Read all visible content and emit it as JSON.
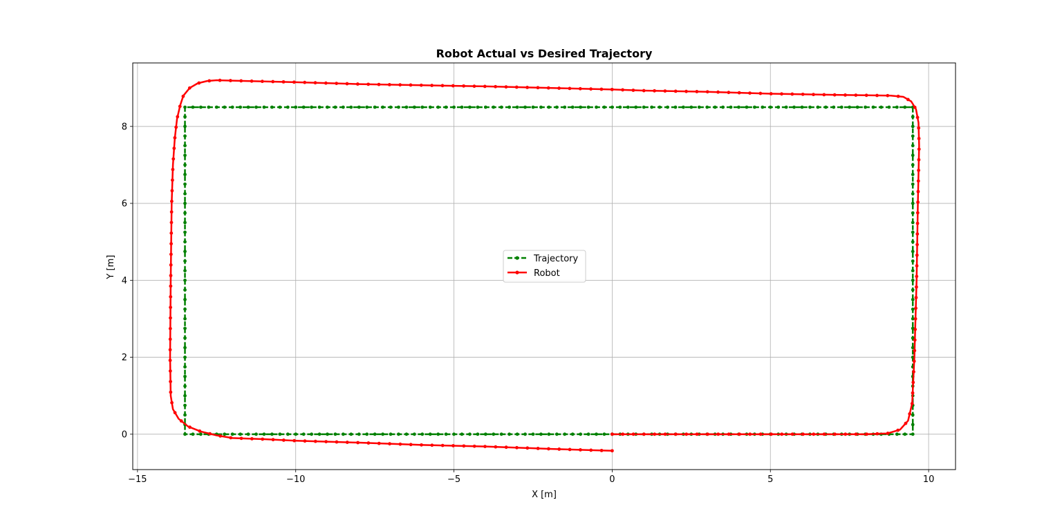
{
  "chart_data": {
    "type": "line",
    "title": "Robot Actual vs Desired Trajectory",
    "xlabel": "X [m]",
    "ylabel": "Y [m]",
    "xlim": [
      -15.15,
      10.85
    ],
    "ylim": [
      -0.92,
      9.65
    ],
    "xticks": [
      -15,
      -10,
      -5,
      0,
      5,
      10
    ],
    "yticks": [
      0,
      2,
      4,
      6,
      8
    ],
    "xtick_labels": [
      "−15",
      "−10",
      "−5",
      "0",
      "5",
      "10"
    ],
    "ytick_labels": [
      "0",
      "2",
      "4",
      "6",
      "8"
    ],
    "grid": true,
    "legend_position": "center",
    "series": [
      {
        "name": "Trajectory",
        "color": "#008000",
        "style": "dashed",
        "marker": "dot",
        "corners": [
          [
            0,
            0
          ],
          [
            9.5,
            0
          ],
          [
            9.5,
            8.5
          ],
          [
            -13.5,
            8.5
          ],
          [
            -13.5,
            0
          ],
          [
            0,
            0
          ]
        ],
        "segment_points": [
          38,
          34,
          92,
          34,
          54
        ]
      },
      {
        "name": "Robot",
        "color": "#ff0000",
        "style": "solid",
        "marker": "dot",
        "points": [
          [
            0,
            0
          ],
          [
            1,
            0
          ],
          [
            2,
            0
          ],
          [
            3,
            0
          ],
          [
            4,
            0
          ],
          [
            5,
            0
          ],
          [
            6,
            0
          ],
          [
            7,
            0
          ],
          [
            8,
            0
          ],
          [
            8.7,
            0.02
          ],
          [
            9.1,
            0.12
          ],
          [
            9.35,
            0.35
          ],
          [
            9.48,
            0.8
          ],
          [
            9.55,
            2
          ],
          [
            9.62,
            4
          ],
          [
            9.66,
            6
          ],
          [
            9.7,
            7.5
          ],
          [
            9.68,
            8.1
          ],
          [
            9.6,
            8.45
          ],
          [
            9.45,
            8.65
          ],
          [
            9.2,
            8.77
          ],
          [
            8.8,
            8.8
          ],
          [
            7,
            8.82
          ],
          [
            5,
            8.85
          ],
          [
            3,
            8.9
          ],
          [
            1,
            8.93
          ],
          [
            0,
            8.96
          ],
          [
            -2,
            9.0
          ],
          [
            -4,
            9.04
          ],
          [
            -6,
            9.07
          ],
          [
            -8,
            9.1
          ],
          [
            -10,
            9.15
          ],
          [
            -11,
            9.17
          ],
          [
            -12,
            9.19
          ],
          [
            -12.5,
            9.2
          ],
          [
            -12.8,
            9.18
          ],
          [
            -13.1,
            9.12
          ],
          [
            -13.35,
            9.0
          ],
          [
            -13.55,
            8.8
          ],
          [
            -13.65,
            8.55
          ],
          [
            -13.75,
            8.2
          ],
          [
            -13.82,
            7.7
          ],
          [
            -13.88,
            7.0
          ],
          [
            -13.92,
            6.0
          ],
          [
            -13.95,
            4.0
          ],
          [
            -13.97,
            2.0
          ],
          [
            -13.95,
            1.0
          ],
          [
            -13.88,
            0.65
          ],
          [
            -13.7,
            0.4
          ],
          [
            -13.4,
            0.2
          ],
          [
            -13.0,
            0.07
          ],
          [
            -12.5,
            -0.03
          ],
          [
            -12.0,
            -0.1
          ],
          [
            -11.0,
            -0.13
          ],
          [
            -10.0,
            -0.17
          ],
          [
            -8.0,
            -0.22
          ],
          [
            -6.0,
            -0.28
          ],
          [
            -4.0,
            -0.32
          ],
          [
            -2.0,
            -0.38
          ],
          [
            -0.5,
            -0.42
          ],
          [
            0,
            -0.43
          ]
        ],
        "marker_count": 200
      }
    ]
  }
}
